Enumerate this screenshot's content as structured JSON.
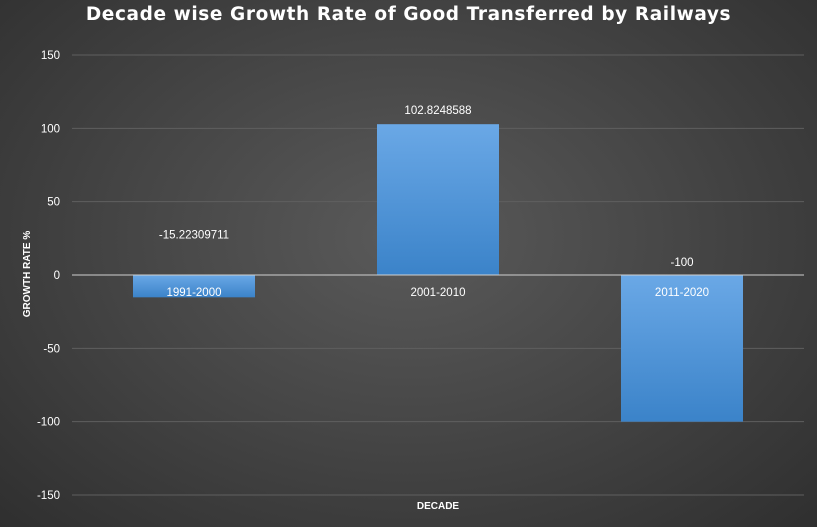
{
  "chart_data": {
    "type": "bar",
    "title": "Decade wise Growth Rate of Good Transferred by Railways",
    "xlabel": "DECADE",
    "ylabel": "GROWTH RATE  %",
    "categories": [
      "1991-2000",
      "2001-2010",
      "2011-2020"
    ],
    "values": [
      -15.22309711,
      102.8248588,
      -100
    ],
    "data_labels": [
      "-15.22309711",
      "102.8248588",
      "-100"
    ],
    "ylim": [
      -150,
      150
    ],
    "yticks": [
      150,
      100,
      50,
      0,
      -50,
      -100,
      -150
    ],
    "ytick_labels": [
      "150",
      "100",
      "50",
      "0",
      "-50",
      "-100",
      "-150"
    ],
    "grid": true,
    "legend": "none",
    "colors": {
      "bar_top": "#6aa8e6",
      "bar_bottom": "#3b83c9",
      "grid": "#5f5f5f",
      "zero_line": "#d0d0d0",
      "text": "#ffffff"
    }
  }
}
